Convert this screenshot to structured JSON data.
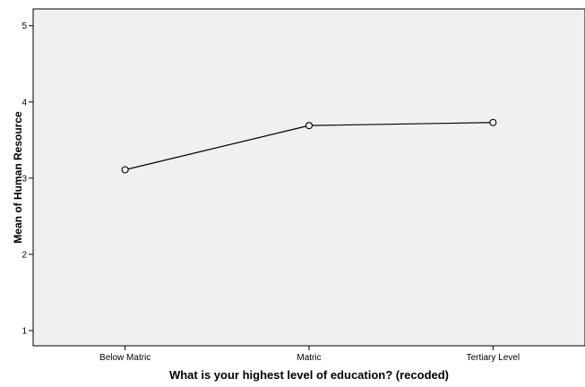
{
  "chart_data": {
    "type": "line",
    "title": "",
    "xlabel": "What is your highest level of education? (recoded)",
    "ylabel": "Mean of Human Resource",
    "categories": [
      "Below Matric",
      "Matric",
      "Tertiary Level"
    ],
    "series": [
      {
        "values": [
          3.11,
          3.69,
          3.73
        ],
        "marker": "open-circle",
        "color": "#000000"
      }
    ],
    "ylim": [
      0.8,
      5.22
    ],
    "yticks": [
      "1",
      "2",
      "3",
      "4",
      "5"
    ],
    "grid": false,
    "legend": "none",
    "plot_background": "#f0f0f0"
  }
}
